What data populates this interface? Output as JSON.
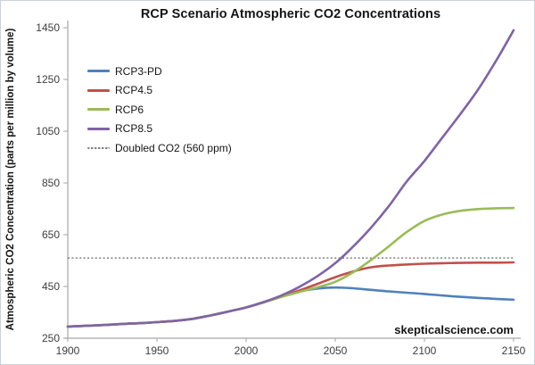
{
  "chart_data": {
    "type": "line",
    "title": "RCP Scenario Atmospheric CO2 Concentrations",
    "ylabel": "Atmospheric CO2 Concentration (parts per million by volume)",
    "xlabel": "",
    "xlim": [
      1900,
      2150
    ],
    "ylim": [
      250,
      1450
    ],
    "x_ticks": [
      1900,
      1950,
      2000,
      2050,
      2100,
      2150
    ],
    "y_ticks": [
      250,
      450,
      650,
      850,
      1050,
      1250,
      1450
    ],
    "grid": false,
    "legend_position": "upper-left-inside",
    "x": [
      1900,
      1910,
      1920,
      1930,
      1940,
      1950,
      1960,
      1970,
      1980,
      1990,
      2000,
      2010,
      2020,
      2030,
      2040,
      2050,
      2060,
      2070,
      2080,
      2090,
      2100,
      2110,
      2120,
      2130,
      2140,
      2150
    ],
    "series": [
      {
        "name": "RCP3-PD",
        "color": "#4F81BD",
        "values": [
          295,
          298,
          301,
          305,
          308,
          312,
          317,
          325,
          338,
          353,
          369,
          390,
          412,
          431,
          442,
          446,
          443,
          437,
          431,
          426,
          421,
          415,
          410,
          406,
          402,
          399
        ]
      },
      {
        "name": "RCP4.5",
        "color": "#C0504D",
        "values": [
          295,
          298,
          301,
          305,
          308,
          312,
          317,
          325,
          338,
          353,
          369,
          389,
          411,
          435,
          460,
          486,
          508,
          524,
          531,
          535,
          538,
          540,
          541,
          542,
          542,
          543
        ]
      },
      {
        "name": "RCP6",
        "color": "#9BBB59",
        "values": [
          295,
          298,
          301,
          305,
          308,
          312,
          317,
          325,
          338,
          353,
          369,
          389,
          410,
          429,
          447,
          468,
          505,
          552,
          605,
          660,
          703,
          728,
          742,
          749,
          752,
          753
        ]
      },
      {
        "name": "RCP8.5",
        "color": "#8064A2",
        "values": [
          295,
          298,
          301,
          305,
          308,
          312,
          317,
          325,
          338,
          353,
          369,
          390,
          416,
          449,
          490,
          540,
          604,
          677,
          760,
          855,
          935,
          1025,
          1115,
          1210,
          1320,
          1440
        ]
      }
    ],
    "reference_line": {
      "label": "Doubled CO2 (560 ppm)",
      "value": 560,
      "style": "dotted",
      "color": "#7f7f7f"
    },
    "axis_color": "#a6a6a6",
    "watermark": "skepticalscience.com"
  }
}
